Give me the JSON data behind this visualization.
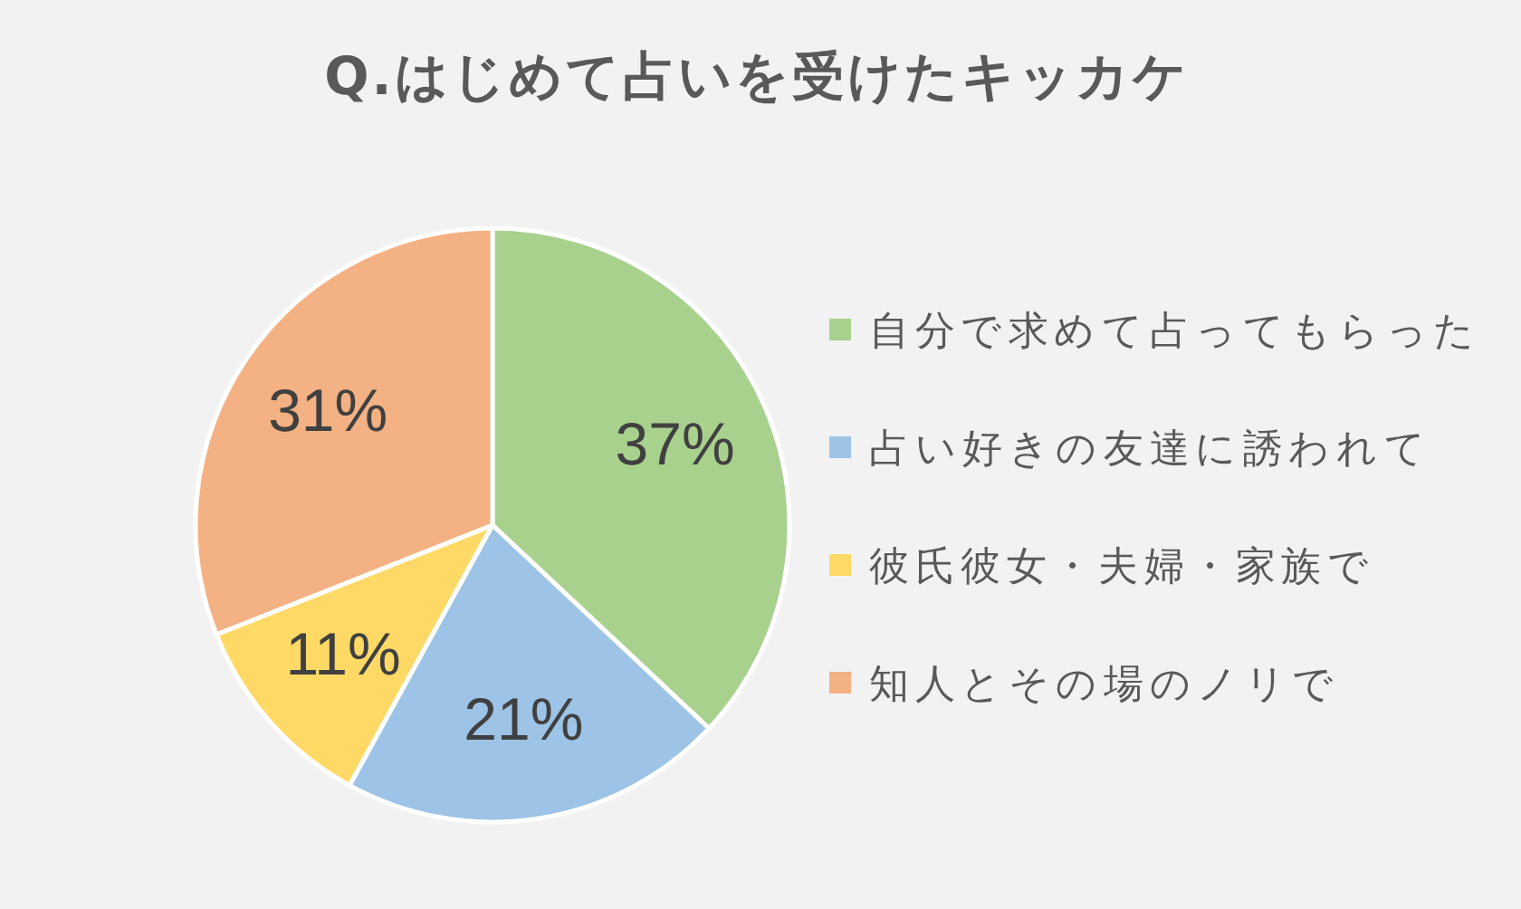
{
  "chart_data": {
    "type": "pie",
    "title": "Q.はじめて占いを受けたキッカケ",
    "categories": [
      "自分で求めて占ってもらった",
      "占い好きの友達に誘われて",
      "彼氏彼女・夫婦・家族で",
      "知人とその場のノリで"
    ],
    "values": [
      37,
      21,
      11,
      31
    ],
    "colors": [
      "#a9d18e",
      "#9dc3e6",
      "#ffd966",
      "#f4b183"
    ],
    "value_labels": [
      "37%",
      "21%",
      "11%",
      "31%"
    ],
    "legend": "right"
  }
}
